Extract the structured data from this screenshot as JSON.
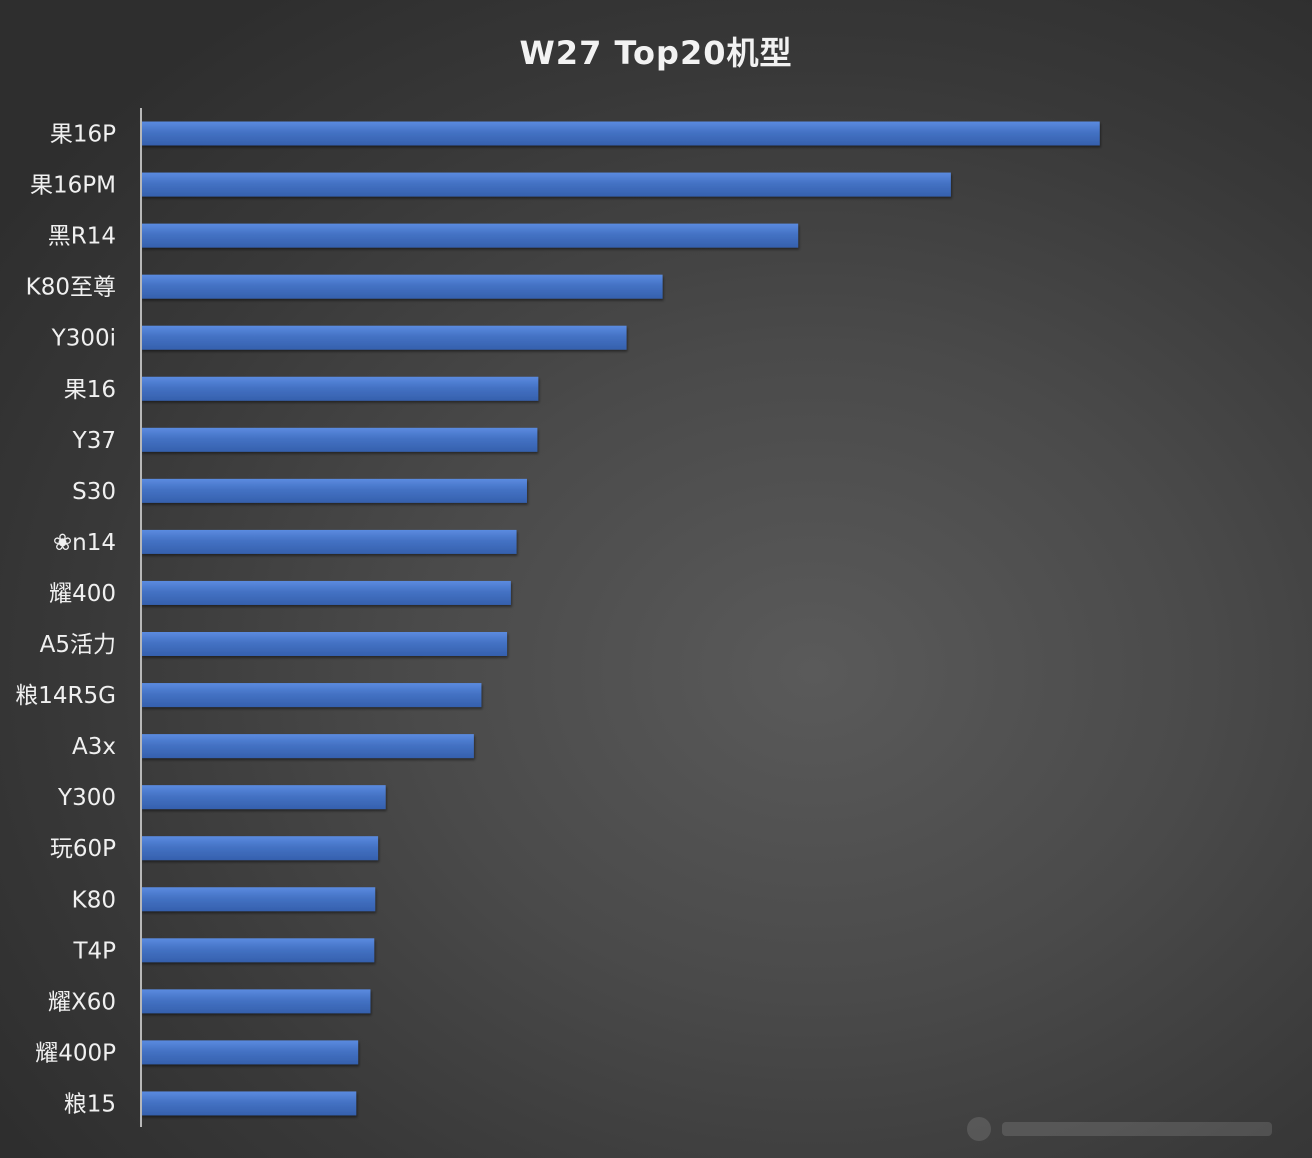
{
  "chart_data": {
    "type": "bar",
    "orientation": "horizontal",
    "title": "W27 Top20机型",
    "xlabel": "",
    "ylabel": "",
    "categories": [
      "果16P",
      "果16PM",
      "黑R14",
      "K80至尊",
      "Y300i",
      "果16",
      "Y37",
      "S30",
      "❀n14",
      "耀400",
      "A5活力",
      "粮14R5G",
      "A3x",
      "Y300",
      "玩60P",
      "K80",
      "T4P",
      "耀X60",
      "耀400P",
      "粮15"
    ],
    "values": [
      1011,
      854,
      693,
      550,
      512,
      419,
      418,
      407,
      396,
      390,
      386,
      359,
      351,
      258,
      250,
      247,
      246,
      242,
      229,
      227
    ],
    "xlim": [
      0,
      1180
    ],
    "grid": false,
    "legend": "none",
    "bar_color": "#4472c4"
  }
}
